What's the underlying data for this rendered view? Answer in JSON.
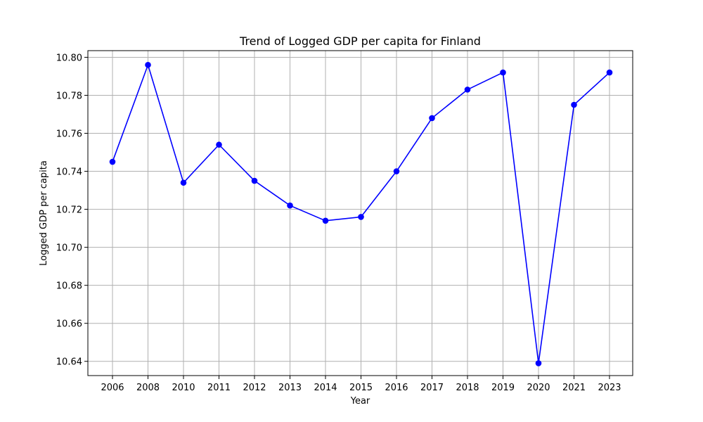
{
  "chart_data": {
    "type": "line",
    "title": "Trend of Logged GDP per capita for Finland",
    "xlabel": "Year",
    "ylabel": "Logged GDP per capita",
    "categories": [
      "2006",
      "2008",
      "2010",
      "2011",
      "2012",
      "2013",
      "2014",
      "2015",
      "2016",
      "2017",
      "2018",
      "2019",
      "2020",
      "2021",
      "2023"
    ],
    "series": [
      {
        "values": [
          10.745,
          10.796,
          10.734,
          10.754,
          10.735,
          10.722,
          10.714,
          10.716,
          10.74,
          10.768,
          10.783,
          10.792,
          10.639,
          10.775,
          10.792
        ],
        "color": "#0000ff",
        "marker": "circle"
      }
    ],
    "ylim": [
      10.6325,
      10.8035
    ],
    "yticks": [
      10.64,
      10.66,
      10.68,
      10.7,
      10.72,
      10.74,
      10.76,
      10.78,
      10.8
    ],
    "ytick_labels": [
      "10.64",
      "10.66",
      "10.68",
      "10.70",
      "10.72",
      "10.74",
      "10.76",
      "10.78",
      "10.80"
    ],
    "grid": true,
    "legend": "none"
  }
}
